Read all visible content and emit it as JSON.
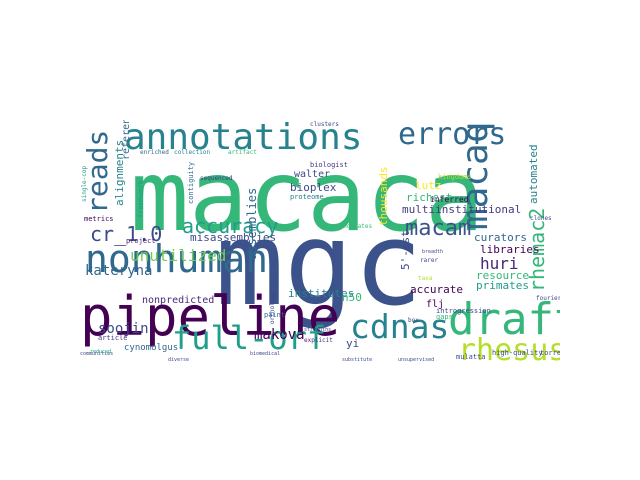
{
  "words": [
    {
      "text": "macaca",
      "color": "#35b779"
    },
    {
      "text": "mgc",
      "color": "#3b528b"
    },
    {
      "text": "pipeline",
      "color": "#440154"
    },
    {
      "text": "nonhuman",
      "color": "#31688e"
    },
    {
      "text": "annotations",
      "color": "#26828e"
    },
    {
      "text": "errors",
      "color": "#31688e"
    },
    {
      "text": "macaque",
      "color": "#31688e"
    },
    {
      "text": "draft",
      "color": "#35b779"
    },
    {
      "text": "cdnas",
      "color": "#26828e"
    },
    {
      "text": "full-orf",
      "color": "#1f9e89"
    },
    {
      "text": "rhesus",
      "color": "#b5de2b"
    },
    {
      "text": "reads",
      "color": "#31688e"
    },
    {
      "text": "accuracy",
      "color": "#1f9e89"
    },
    {
      "text": "cr_1.0",
      "color": "#3e4989"
    },
    {
      "text": "rhemac2",
      "color": "#35b779"
    },
    {
      "text": "macam",
      "color": "#3b528b"
    },
    {
      "text": "unutilized",
      "color": "#6ece58"
    },
    {
      "text": "kateryna",
      "color": "#31688e"
    },
    {
      "text": "huri",
      "color": "#482878"
    },
    {
      "text": "makova",
      "color": "#440154"
    },
    {
      "text": "soojin",
      "color": "#3e4989"
    },
    {
      "text": "multiinstitutional",
      "color": "#443983"
    },
    {
      "text": "misassemblies",
      "color": "#3e4989"
    },
    {
      "text": "alignments",
      "color": "#26828e"
    },
    {
      "text": "assemblies",
      "color": "#31688e"
    },
    {
      "text": "institutes",
      "color": "#26828e"
    },
    {
      "text": "bioplex",
      "color": "#3e4989"
    },
    {
      "text": "walter",
      "color": "#3e4989"
    },
    {
      "text": "lutz",
      "color": "#fde725"
    },
    {
      "text": "richest",
      "color": "#35b779"
    },
    {
      "text": "thousands",
      "color": "#fde725"
    },
    {
      "text": "curators",
      "color": "#31688e"
    },
    {
      "text": "libraries",
      "color": "#440154"
    },
    {
      "text": "resource",
      "color": "#35b779"
    },
    {
      "text": "primates",
      "color": "#1f9e89"
    },
    {
      "text": "accurate",
      "color": "#440154"
    },
    {
      "text": "automated",
      "color": "#26828e"
    },
    {
      "text": "nonpredicted",
      "color": "#482878"
    },
    {
      "text": "cynomolgus",
      "color": "#31688e"
    },
    {
      "text": "reference",
      "color": "#31688e"
    },
    {
      "text": "yi",
      "color": "#3e4989"
    },
    {
      "text": "n50",
      "color": "#35b779"
    },
    {
      "text": "5'-est",
      "color": "#3e4989"
    },
    {
      "text": "flj",
      "color": "#440154"
    },
    {
      "text": "mulatta",
      "color": "#3e4989"
    },
    {
      "text": "high-quality",
      "color": "#3e4989"
    },
    {
      "text": "torrent",
      "color": "#3e4989"
    },
    {
      "text": "inferred",
      "color": "#440154"
    },
    {
      "text": "kingdoms",
      "color": "#b5de2b"
    },
    {
      "text": "biologist",
      "color": "#443983"
    },
    {
      "text": "framework",
      "color": "#1f9e89"
    },
    {
      "text": "contiguity",
      "color": "#31688e"
    },
    {
      "text": "proteome",
      "color": "#26828e"
    },
    {
      "text": "candidates",
      "color": "#35b779"
    },
    {
      "text": "sequenced",
      "color": "#443983"
    },
    {
      "text": "metrics",
      "color": "#440154"
    },
    {
      "text": "article",
      "color": "#443983"
    },
    {
      "text": "project",
      "color": "#482878"
    },
    {
      "text": "enriched",
      "color": "#31688e"
    },
    {
      "text": "collection",
      "color": "#26828e"
    },
    {
      "text": "artifact",
      "color": "#35b779"
    },
    {
      "text": "gaps",
      "color": "#35b779"
    },
    {
      "text": "paint",
      "color": "#31688e"
    },
    {
      "text": "introgression",
      "color": "#3e4989"
    },
    {
      "text": "explicit",
      "color": "#482878"
    },
    {
      "text": "clones",
      "color": "#3e4989"
    },
    {
      "text": "rarer",
      "color": "#3e4989"
    },
    {
      "text": "box",
      "color": "#3e4989"
    },
    {
      "text": "fourier",
      "color": "#3e4989"
    },
    {
      "text": "single-cop",
      "color": "#1f9e89"
    },
    {
      "text": "taxa",
      "color": "#b5de2b"
    },
    {
      "text": "orthology",
      "color": "#3e4989"
    },
    {
      "text": "clusters",
      "color": "#3e4989"
    },
    {
      "text": "communities",
      "color": "#3e4989"
    },
    {
      "text": "diverse",
      "color": "#3e4989"
    },
    {
      "text": "unsupervised",
      "color": "#3e4989"
    },
    {
      "text": "reduced",
      "color": "#1f9e89"
    },
    {
      "text": "strengths",
      "color": "#3e4989"
    },
    {
      "text": "substitute",
      "color": "#3e4989"
    },
    {
      "text": "biomedical",
      "color": "#3e4989"
    },
    {
      "text": "breadth",
      "color": "#3e4989"
    }
  ]
}
